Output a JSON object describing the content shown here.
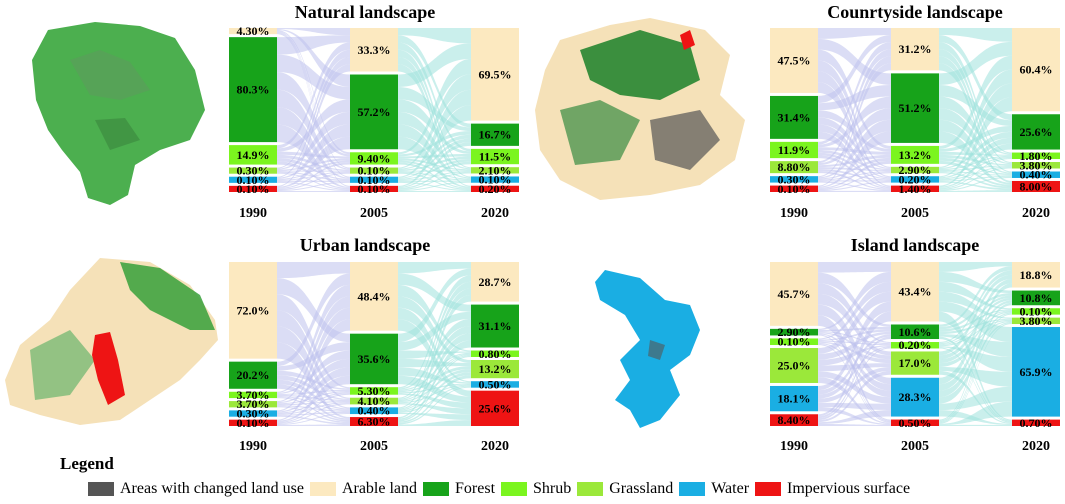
{
  "colors": {
    "changed": "#555555",
    "arable": "#fce9c0",
    "forest": "#17a31a",
    "shrub": "#7bf51f",
    "grassland": "#9be83a",
    "water": "#1aaee3",
    "impervious": "#ee1414",
    "flow_left": "#bdc1ec",
    "flow_right": "#9ee2dd"
  },
  "legend": {
    "title": "Legend",
    "items": [
      {
        "key": "changed",
        "label": "Areas with changed land use"
      },
      {
        "key": "arable",
        "label": "Arable land"
      },
      {
        "key": "forest",
        "label": "Forest"
      },
      {
        "key": "shrub",
        "label": "Shrub"
      },
      {
        "key": "grassland",
        "label": "Grassland"
      },
      {
        "key": "water",
        "label": "Water"
      },
      {
        "key": "impervious",
        "label": "Impervious surface"
      }
    ]
  },
  "chart_data": [
    {
      "type": "sankey",
      "title": "Natural landscape",
      "years": [
        "1990",
        "2005",
        "2020"
      ],
      "columns": [
        [
          {
            "cls": "arable",
            "value": 4.3,
            "label": "4.30%"
          },
          {
            "cls": "forest",
            "value": 80.3,
            "label": "80.3%"
          },
          {
            "cls": "shrub",
            "value": 14.9,
            "label": "14.9%"
          },
          {
            "cls": "grassland",
            "value": 0.3,
            "label": "0.30%"
          },
          {
            "cls": "water",
            "value": 0.1,
            "label": "0.10%"
          },
          {
            "cls": "impervious",
            "value": 0.1,
            "label": "0.10%"
          }
        ],
        [
          {
            "cls": "arable",
            "value": 33.3,
            "label": "33.3%"
          },
          {
            "cls": "forest",
            "value": 57.2,
            "label": "57.2%"
          },
          {
            "cls": "shrub",
            "value": 9.4,
            "label": "9.40%"
          },
          {
            "cls": "grassland",
            "value": 0.1,
            "label": "0.10%"
          },
          {
            "cls": "water",
            "value": 0.1,
            "label": "0.10%"
          },
          {
            "cls": "impervious",
            "value": 0.1,
            "label": "0.10%"
          }
        ],
        [
          {
            "cls": "arable",
            "value": 69.5,
            "label": "69.5%"
          },
          {
            "cls": "forest",
            "value": 16.7,
            "label": "16.7%"
          },
          {
            "cls": "shrub",
            "value": 11.5,
            "label": "11.5%"
          },
          {
            "cls": "grassland",
            "value": 2.1,
            "label": "2.10%"
          },
          {
            "cls": "water",
            "value": 0.1,
            "label": "0.10%"
          },
          {
            "cls": "impervious",
            "value": 0.2,
            "label": "0.20%"
          }
        ]
      ]
    },
    {
      "type": "sankey",
      "title": "Counrtyside landscape",
      "years": [
        "1990",
        "2005",
        "2020"
      ],
      "columns": [
        [
          {
            "cls": "arable",
            "value": 47.5,
            "label": "47.5%"
          },
          {
            "cls": "forest",
            "value": 31.4,
            "label": "31.4%"
          },
          {
            "cls": "shrub",
            "value": 11.9,
            "label": "11.9%"
          },
          {
            "cls": "grassland",
            "value": 8.8,
            "label": "8.80%"
          },
          {
            "cls": "water",
            "value": 0.3,
            "label": "0.30%"
          },
          {
            "cls": "impervious",
            "value": 0.1,
            "label": "0.10%"
          }
        ],
        [
          {
            "cls": "arable",
            "value": 31.2,
            "label": "31.2%"
          },
          {
            "cls": "forest",
            "value": 51.2,
            "label": "51.2%"
          },
          {
            "cls": "shrub",
            "value": 13.2,
            "label": "13.2%"
          },
          {
            "cls": "grassland",
            "value": 2.9,
            "label": "2.90%"
          },
          {
            "cls": "water",
            "value": 0.2,
            "label": "0.20%"
          },
          {
            "cls": "impervious",
            "value": 1.4,
            "label": "1.40%"
          }
        ],
        [
          {
            "cls": "arable",
            "value": 60.4,
            "label": "60.4%"
          },
          {
            "cls": "forest",
            "value": 25.6,
            "label": "25.6%"
          },
          {
            "cls": "shrub",
            "value": 1.8,
            "label": "1.80%"
          },
          {
            "cls": "grassland",
            "value": 3.8,
            "label": "3.80%"
          },
          {
            "cls": "water",
            "value": 0.4,
            "label": "0.40%"
          },
          {
            "cls": "impervious",
            "value": 8.0,
            "label": "8.00%"
          }
        ]
      ]
    },
    {
      "type": "sankey",
      "title": "Urban landscape",
      "years": [
        "1990",
        "2005",
        "2020"
      ],
      "columns": [
        [
          {
            "cls": "arable",
            "value": 72.0,
            "label": "72.0%"
          },
          {
            "cls": "forest",
            "value": 20.2,
            "label": "20.2%"
          },
          {
            "cls": "shrub",
            "value": 3.7,
            "label": "3.70%"
          },
          {
            "cls": "grassland",
            "value": 3.7,
            "label": "3.70%"
          },
          {
            "cls": "water",
            "value": 0.3,
            "label": "0.30%"
          },
          {
            "cls": "impervious",
            "value": 0.1,
            "label": "0.10%"
          }
        ],
        [
          {
            "cls": "arable",
            "value": 48.4,
            "label": "48.4%"
          },
          {
            "cls": "forest",
            "value": 35.6,
            "label": "35.6%"
          },
          {
            "cls": "shrub",
            "value": 5.3,
            "label": "5.30%"
          },
          {
            "cls": "grassland",
            "value": 4.1,
            "label": "4.10%"
          },
          {
            "cls": "water",
            "value": 0.4,
            "label": "0.40%"
          },
          {
            "cls": "impervious",
            "value": 6.3,
            "label": "6.30%"
          }
        ],
        [
          {
            "cls": "arable",
            "value": 28.7,
            "label": "28.7%"
          },
          {
            "cls": "forest",
            "value": 31.1,
            "label": "31.1%"
          },
          {
            "cls": "shrub",
            "value": 0.8,
            "label": "0.80%"
          },
          {
            "cls": "grassland",
            "value": 13.2,
            "label": "13.2%"
          },
          {
            "cls": "water",
            "value": 0.5,
            "label": "0.50%"
          },
          {
            "cls": "impervious",
            "value": 25.6,
            "label": "25.6%"
          }
        ]
      ]
    },
    {
      "type": "sankey",
      "title": "Island landscape",
      "years": [
        "1990",
        "2005",
        "2020"
      ],
      "columns": [
        [
          {
            "cls": "arable",
            "value": 45.7,
            "label": "45.7%"
          },
          {
            "cls": "forest",
            "value": 2.9,
            "label": "2.90%"
          },
          {
            "cls": "shrub",
            "value": 0.1,
            "label": "0.10%"
          },
          {
            "cls": "grassland",
            "value": 25.0,
            "label": "25.0%"
          },
          {
            "cls": "water",
            "value": 18.1,
            "label": "18.1%"
          },
          {
            "cls": "impervious",
            "value": 8.4,
            "label": "8.40%"
          }
        ],
        [
          {
            "cls": "arable",
            "value": 43.4,
            "label": "43.4%"
          },
          {
            "cls": "forest",
            "value": 10.6,
            "label": "10.6%"
          },
          {
            "cls": "shrub",
            "value": 0.2,
            "label": "0.20%"
          },
          {
            "cls": "grassland",
            "value": 17.0,
            "label": "17.0%"
          },
          {
            "cls": "water",
            "value": 28.3,
            "label": "28.3%"
          },
          {
            "cls": "impervious",
            "value": 0.5,
            "label": "0.50%"
          }
        ],
        [
          {
            "cls": "arable",
            "value": 18.8,
            "label": "18.8%"
          },
          {
            "cls": "forest",
            "value": 10.8,
            "label": "10.8%"
          },
          {
            "cls": "shrub",
            "value": 0.1,
            "label": "0.10%"
          },
          {
            "cls": "grassland",
            "value": 3.8,
            "label": "3.80%"
          },
          {
            "cls": "water",
            "value": 65.9,
            "label": "65.9%"
          },
          {
            "cls": "impervious",
            "value": 0.7,
            "label": "0.70%"
          }
        ]
      ]
    }
  ]
}
